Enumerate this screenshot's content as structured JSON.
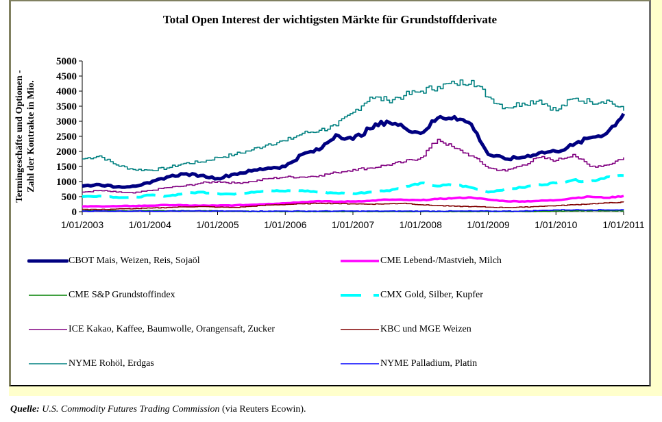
{
  "chart_data": {
    "type": "line",
    "title": "Total Open Interest der wichtigsten Märkte für Grundstoffderivate",
    "xlabel": "",
    "ylabel": "Termingeschäfte und Optionen - Zahl der Kontrakte in Mio.",
    "ylabel_lines": [
      "Termingeschäfte und Optionen -",
      "Zahl der Kontrakte in Mio."
    ],
    "ylim": [
      0,
      5000
    ],
    "yticks": [
      0,
      500,
      1000,
      1500,
      2000,
      2500,
      3000,
      3500,
      4000,
      4500,
      5000
    ],
    "ytick_labels": [
      "0",
      "500",
      "1000",
      "1500",
      "2000",
      "2500",
      "3000",
      "3500",
      "4000",
      "4500",
      "5000"
    ],
    "xlim": [
      2003,
      2011
    ],
    "xticks": [
      2003,
      2004,
      2005,
      2006,
      2007,
      2008,
      2009,
      2010,
      2011
    ],
    "xtick_labels": [
      "1/01/2003",
      "1/01/2004",
      "1/01/2005",
      "1/01/2006",
      "1/01/2007",
      "1/01/2008",
      "1/01/2009",
      "1/01/2010",
      "1/01/2011"
    ],
    "grid": false,
    "legend_position": "bottom",
    "x": [
      2003.0,
      2003.25,
      2003.5,
      2003.75,
      2004.0,
      2004.25,
      2004.5,
      2004.75,
      2005.0,
      2005.25,
      2005.5,
      2005.75,
      2006.0,
      2006.25,
      2006.5,
      2006.75,
      2007.0,
      2007.25,
      2007.5,
      2007.75,
      2008.0,
      2008.25,
      2008.5,
      2008.75,
      2009.0,
      2009.25,
      2009.5,
      2009.75,
      2010.0,
      2010.25,
      2010.5,
      2010.75,
      2011.0
    ],
    "series": [
      {
        "name": "CBOT Mais, Weizen, Reis, Sojaöl",
        "color": "#000080",
        "style": "thick",
        "values": [
          850,
          900,
          820,
          850,
          950,
          1150,
          1250,
          1200,
          1100,
          1250,
          1350,
          1450,
          1500,
          1900,
          2050,
          2550,
          2400,
          2750,
          3000,
          2800,
          2600,
          3100,
          3150,
          2900,
          1900,
          1750,
          1800,
          1950,
          2000,
          2200,
          2450,
          2600,
          3250
        ]
      },
      {
        "name": "CME Lebend-/Mastvieh, Milch",
        "color": "#ff00ff",
        "style": "medium",
        "values": [
          170,
          180,
          180,
          190,
          200,
          220,
          210,
          200,
          200,
          210,
          230,
          260,
          280,
          320,
          350,
          330,
          340,
          360,
          400,
          390,
          380,
          420,
          450,
          470,
          400,
          350,
          340,
          360,
          380,
          450,
          500,
          460,
          520
        ]
      },
      {
        "name": "CME S&P Grundstoffindex",
        "color": "#008000",
        "style": "thin",
        "values": [
          30,
          30,
          30,
          30,
          30,
          30,
          30,
          30,
          25,
          20,
          10,
          5,
          5,
          5,
          5,
          5,
          5,
          5,
          5,
          5,
          5,
          5,
          5,
          5,
          5,
          5,
          5,
          10,
          20,
          30,
          30,
          30,
          30
        ]
      },
      {
        "name": "CMX Gold, Silber, Kupfer",
        "color": "#00ffff",
        "style": "dashed",
        "values": [
          500,
          520,
          480,
          460,
          550,
          520,
          600,
          650,
          600,
          580,
          650,
          700,
          680,
          700,
          650,
          620,
          600,
          650,
          700,
          800,
          950,
          850,
          900,
          800,
          650,
          750,
          800,
          900,
          950,
          1050,
          1000,
          1150,
          1200
        ]
      },
      {
        "name": "ICE Kakao, Kaffee, Baumwolle, Orangensaft, Zucker",
        "color": "#800080",
        "style": "thin",
        "values": [
          650,
          700,
          650,
          620,
          700,
          800,
          850,
          950,
          1000,
          950,
          1000,
          1100,
          1150,
          1150,
          1200,
          1300,
          1400,
          1450,
          1550,
          1650,
          1800,
          2400,
          2100,
          1850,
          1450,
          1350,
          1550,
          1800,
          1700,
          1900,
          1500,
          1550,
          1800
        ]
      },
      {
        "name": "KBC und MGE Weizen",
        "color": "#800000",
        "style": "thin",
        "values": [
          80,
          70,
          90,
          100,
          120,
          140,
          160,
          170,
          150,
          140,
          180,
          220,
          240,
          260,
          280,
          270,
          260,
          250,
          260,
          280,
          230,
          200,
          180,
          170,
          150,
          140,
          150,
          180,
          200,
          230,
          260,
          290,
          320
        ]
      },
      {
        "name": "NYME Rohöl, Erdgas",
        "color": "#008080",
        "style": "thin",
        "values": [
          1750,
          1850,
          1550,
          1400,
          1380,
          1450,
          1600,
          1650,
          1800,
          1900,
          2050,
          2250,
          2350,
          2600,
          2700,
          2850,
          3300,
          3800,
          3700,
          3850,
          4000,
          4150,
          4250,
          4350,
          3800,
          3450,
          3600,
          3700,
          3350,
          3750,
          3650,
          3700,
          3350
        ]
      },
      {
        "name": "NYME Palladium, Platin",
        "color": "#0000ff",
        "style": "thin",
        "values": [
          20,
          20,
          20,
          20,
          20,
          20,
          20,
          20,
          20,
          20,
          20,
          20,
          20,
          20,
          20,
          20,
          20,
          20,
          20,
          20,
          20,
          20,
          20,
          20,
          20,
          20,
          20,
          40,
          60,
          60,
          60,
          60,
          60
        ]
      }
    ]
  },
  "source": {
    "label": "Quelle:",
    "text_italic": "U.S. Commodity Futures Trading Commission",
    "text_plain": " (via Reuters Ecowin)."
  }
}
